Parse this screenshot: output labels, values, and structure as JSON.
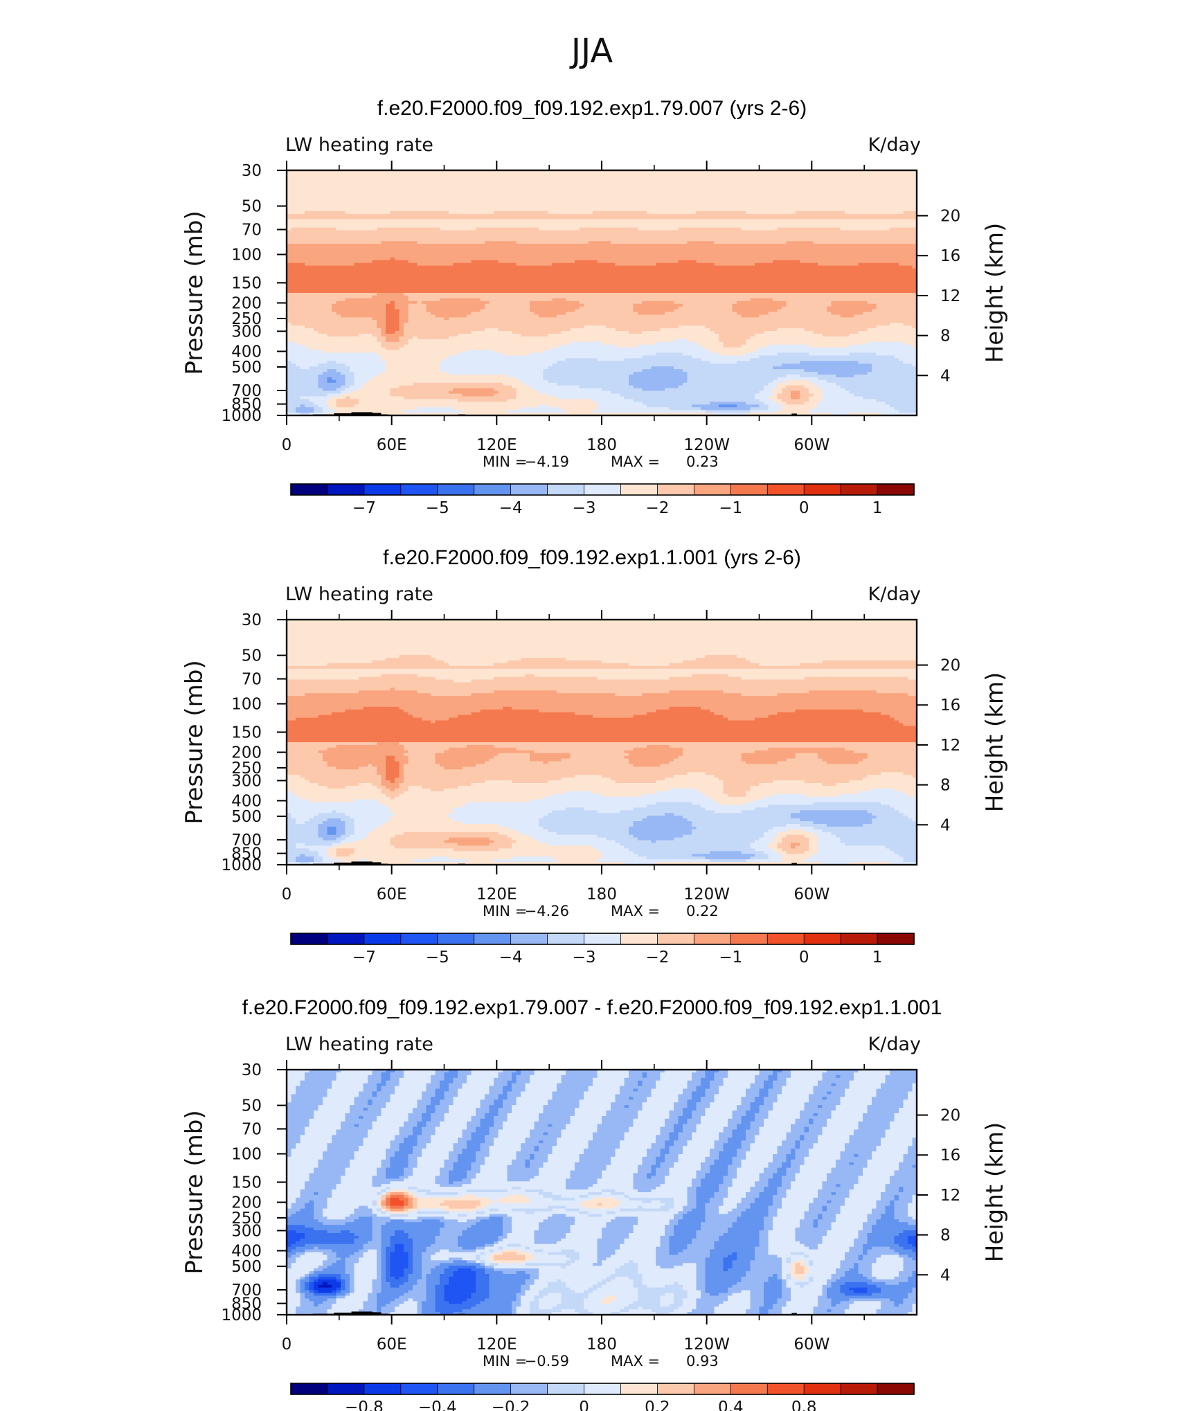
{
  "figure": {
    "title": "JJA",
    "panels": [
      {
        "case_title": "f.e20.F2000.f09_f09.192.exp1.79.007 (yrs 2-6)",
        "variable": "LW heating rate",
        "units": "K/day",
        "ylabel_left": "Pressure (mb)",
        "ylabel_right": "Height (km)",
        "min_label": "MIN =",
        "min_value": "−4.19",
        "max_label": "MAX =",
        "max_value": "0.23",
        "colorbar_ticks": [
          "−7",
          "−5",
          "−4",
          "−3",
          "−2",
          "−1",
          "0",
          "1"
        ]
      },
      {
        "case_title": "f.e20.F2000.f09_f09.192.exp1.1.001 (yrs 2-6)",
        "variable": "LW heating rate",
        "units": "K/day",
        "ylabel_left": "Pressure (mb)",
        "ylabel_right": "Height (km)",
        "min_label": "MIN =",
        "min_value": "−4.26",
        "max_label": "MAX =",
        "max_value": "0.22",
        "colorbar_ticks": [
          "−7",
          "−5",
          "−4",
          "−3",
          "−2",
          "−1",
          "0",
          "1"
        ]
      },
      {
        "case_title": "f.e20.F2000.f09_f09.192.exp1.79.007 - f.e20.F2000.f09_f09.192.exp1.1.001",
        "variable": "LW heating rate",
        "units": "K/day",
        "ylabel_left": "Pressure (mb)",
        "ylabel_right": "Height (km)",
        "min_label": "MIN =",
        "min_value": "−0.59",
        "max_label": "MAX =",
        "max_value": "0.93",
        "colorbar_ticks": [
          "−0.8",
          "−0.4",
          "−0.2",
          "0",
          "0.2",
          "0.4",
          "0.8"
        ]
      }
    ],
    "x_ticks": [
      "0",
      "60E",
      "120E",
      "180",
      "120W",
      "60W"
    ],
    "pressure_ticks": [
      "30",
      "50",
      "70",
      "100",
      "150",
      "200",
      "250",
      "300",
      "400",
      "500",
      "700",
      "850",
      "1000"
    ],
    "height_ticks": [
      "20",
      "16",
      "12",
      "8",
      "4"
    ]
  },
  "chart_data": {
    "type": "heatmap",
    "description_of_axes": "longitude vs pressure cross-section",
    "x": {
      "values": [
        0,
        60,
        120,
        180,
        240,
        300
      ],
      "labels": [
        "0",
        "60E",
        "120E",
        "180",
        "120W",
        "60W"
      ],
      "range": [
        0,
        360
      ]
    },
    "y_pressure": {
      "values": [
        30,
        50,
        70,
        100,
        150,
        200,
        250,
        300,
        400,
        500,
        700,
        850,
        1000
      ],
      "scale": "log",
      "range": [
        1000,
        30
      ]
    },
    "y_height": {
      "values": [
        20,
        16,
        12,
        8,
        4
      ]
    },
    "panels": [
      {
        "min": -4.19,
        "max": 0.23,
        "colorbar": [
          -7,
          -5,
          -4,
          -3,
          -2,
          -1,
          0,
          1
        ]
      },
      {
        "min": -4.26,
        "max": 0.22,
        "colorbar": [
          -7,
          -5,
          -4,
          -3,
          -2,
          -1,
          0,
          1
        ]
      },
      {
        "min": -0.59,
        "max": 0.93,
        "colorbar": [
          -0.8,
          -0.4,
          -0.2,
          0,
          0.2,
          0.4,
          0.8
        ]
      }
    ],
    "colors": [
      "#00007f",
      "#0016bf",
      "#0b3ae8",
      "#1f55f2",
      "#3b72f0",
      "#6394f0",
      "#98b8f5",
      "#c4d8f8",
      "#dfeafc",
      "#fde5d2",
      "#fcc9ad",
      "#f9a57f",
      "#f5794f",
      "#f2522a",
      "#e0300f",
      "#b81b08",
      "#8a0703"
    ]
  }
}
